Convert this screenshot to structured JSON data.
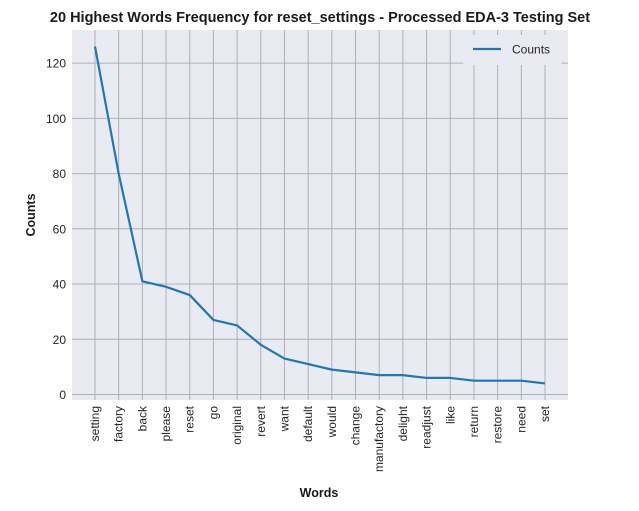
{
  "chart_data": {
    "type": "line",
    "title": "20 Highest Words Frequency for reset_settings - Processed EDA-3 Testing Set",
    "xlabel": "Words",
    "ylabel": "Counts",
    "categories": [
      "setting",
      "factory",
      "back",
      "please",
      "reset",
      "go",
      "original",
      "revert",
      "want",
      "default",
      "would",
      "change",
      "manufactory",
      "delight",
      "readjust",
      "like",
      "return",
      "restore",
      "need",
      "set"
    ],
    "series": [
      {
        "name": "Counts",
        "values": [
          126,
          80,
          41,
          39,
          36,
          27,
          25,
          18,
          13,
          11,
          9,
          8,
          7,
          7,
          6,
          6,
          5,
          5,
          5,
          4
        ],
        "color": "#1f77b4"
      }
    ],
    "yticks": [
      0,
      20,
      40,
      60,
      80,
      100,
      120
    ],
    "ylim": [
      -2,
      132
    ],
    "grid": true,
    "legend": "top-right",
    "background": "#eaeaf2",
    "grid_color": "#b0b0b8"
  }
}
